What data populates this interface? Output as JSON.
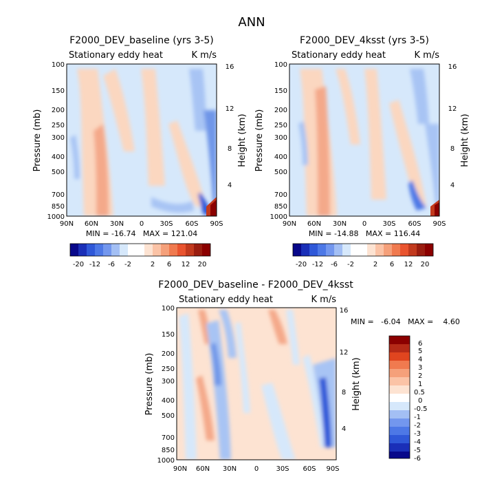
{
  "chart_data": {
    "type": "heatmap",
    "title": "ANN",
    "panels": [
      {
        "title": "F2000_DEV_baseline (yrs 3-5)",
        "subtitle_left": "Stationary eddy heat",
        "subtitle_right": "K m/s",
        "ylabel": "Pressure (mb)",
        "ylabel_right": "Height (km)",
        "x_ticks": [
          "90N",
          "60N",
          "30N",
          "0",
          "30S",
          "60S",
          "90S"
        ],
        "y_ticks": [
          "100",
          "150",
          "200",
          "250",
          "300",
          "400",
          "500",
          "700",
          "850",
          "1000"
        ],
        "y_right_ticks": [
          "16",
          "12",
          "8",
          "4"
        ],
        "stats": "MIN = -16.74   MAX = 121.04",
        "colorbar_labels": [
          "-20",
          "-12",
          "-6",
          "-2",
          "2",
          "6",
          "12",
          "20"
        ]
      },
      {
        "title": "F2000_DEV_4ksst (yrs 3-5)",
        "subtitle_left": "Stationary eddy heat",
        "subtitle_right": "K m/s",
        "ylabel": "Pressure (mb)",
        "ylabel_right": "Height (km)",
        "x_ticks": [
          "90N",
          "60N",
          "30N",
          "0",
          "30S",
          "60S",
          "90S"
        ],
        "y_ticks": [
          "100",
          "150",
          "200",
          "250",
          "300",
          "400",
          "500",
          "700",
          "850",
          "1000"
        ],
        "y_right_ticks": [
          "16",
          "12",
          "8",
          "4"
        ],
        "stats": "MIN = -14.88   MAX = 116.44",
        "colorbar_labels": [
          "-20",
          "-12",
          "-6",
          "-2",
          "2",
          "6",
          "12",
          "20"
        ]
      },
      {
        "title": "F2000_DEV_baseline - F2000_DEV_4ksst",
        "subtitle_left": "Stationary eddy heat",
        "subtitle_right": "K m/s",
        "ylabel": "Pressure (mb)",
        "ylabel_right": "Height (km)",
        "x_ticks": [
          "90N",
          "60N",
          "30N",
          "0",
          "30S",
          "60S",
          "90S"
        ],
        "y_ticks": [
          "100",
          "150",
          "200",
          "250",
          "300",
          "400",
          "500",
          "700",
          "850",
          "1000"
        ],
        "y_right_ticks": [
          "16",
          "12",
          "8",
          "4"
        ],
        "stats": "MIN =   -6.04   MAX =    4.60",
        "colorbar_labels": [
          "6",
          "5",
          "4",
          "3",
          "2",
          "1",
          "0.5",
          "0",
          "-0.5",
          "-1",
          "-2",
          "-3",
          "-4",
          "-5",
          "-6"
        ]
      }
    ],
    "colors": {
      "strong_red": "#8b0000",
      "red": "#e9542f",
      "light_red": "#fbd7c0",
      "white": "#ffffff",
      "light_blue": "#d6e8fb",
      "blue": "#6f96e8",
      "deep_blue": "#0a0a8c"
    }
  }
}
